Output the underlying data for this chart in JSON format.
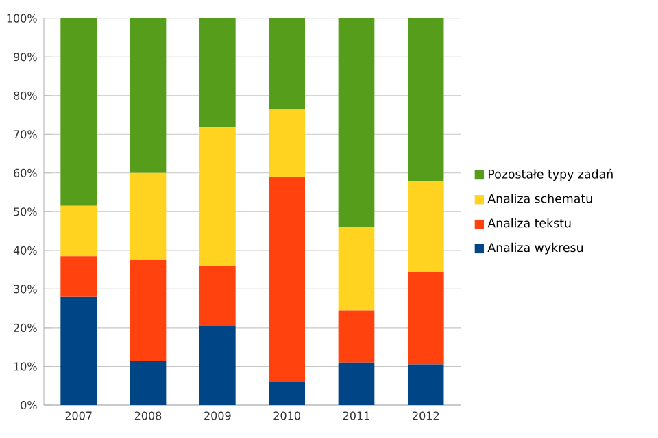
{
  "chart_data": {
    "type": "bar",
    "stacked": true,
    "categories": [
      "2007",
      "2008",
      "2009",
      "2010",
      "2011",
      "2012"
    ],
    "series": [
      {
        "name": "Analiza wykresu",
        "color": "#004586",
        "values": [
          28,
          11.5,
          20.5,
          6,
          11,
          10.5
        ]
      },
      {
        "name": "Analiza tekstu",
        "color": "#ff420e",
        "values": [
          10.5,
          26,
          15.5,
          53,
          13.5,
          24
        ]
      },
      {
        "name": "Analiza schematu",
        "color": "#ffd320",
        "values": [
          13,
          22.5,
          36,
          17.5,
          21.5,
          23.5
        ]
      },
      {
        "name": "Pozostałe typy zadań",
        "color": "#579d1c",
        "values": [
          48.5,
          40,
          28,
          23.5,
          54,
          42
        ]
      }
    ],
    "ylim": [
      0,
      100
    ],
    "yticks": [
      {
        "value": 0,
        "label": "0%"
      },
      {
        "value": 10,
        "label": "10%"
      },
      {
        "value": 20,
        "label": "20%"
      },
      {
        "value": 30,
        "label": "30%"
      },
      {
        "value": 40,
        "label": "40%"
      },
      {
        "value": 50,
        "label": "50%"
      },
      {
        "value": 60,
        "label": "60%"
      },
      {
        "value": 70,
        "label": "70%"
      },
      {
        "value": 80,
        "label": "80%"
      },
      {
        "value": 90,
        "label": "90%"
      },
      {
        "value": 100,
        "label": "100%"
      }
    ],
    "grid": "y",
    "legend": "right"
  }
}
